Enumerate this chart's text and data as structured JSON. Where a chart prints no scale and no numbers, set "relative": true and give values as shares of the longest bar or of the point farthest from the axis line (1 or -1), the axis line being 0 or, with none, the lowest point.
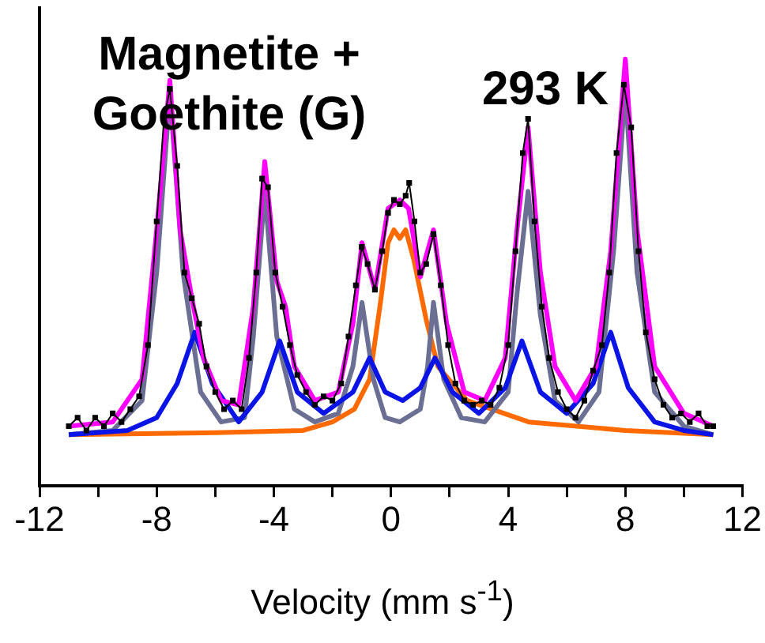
{
  "chart_data": {
    "type": "line",
    "relative": true,
    "xlabel": "Velocity (mm s$^{-1}$)",
    "annotations": [
      "Magnetite + Goethite (G)",
      "293 K"
    ],
    "xlim": [
      -12,
      12
    ],
    "xticks": [
      -12,
      {
        "value": -10,
        "label": null
      },
      -8,
      {
        "value": -6,
        "label": null
      },
      -4,
      {
        "value": -2,
        "label": null
      },
      0,
      {
        "value": 2,
        "label": null
      },
      4,
      {
        "value": 6,
        "label": null
      },
      8,
      {
        "value": 10,
        "label": null
      },
      12
    ],
    "grid": false,
    "legend": false,
    "series": [
      {
        "type": "line",
        "color": "#ff6a00",
        "marker": "none",
        "x": [
          -11,
          -6,
          -3,
          -2,
          -1.25,
          -0.73,
          -0.36,
          -0.1,
          0.1,
          0.3,
          0.5,
          0.78,
          1.2,
          1.6,
          2.6,
          4.7,
          8,
          11
        ],
        "values": [
          0.12,
          0.125,
          0.13,
          0.15,
          0.18,
          0.25,
          0.43,
          0.57,
          0.6,
          0.58,
          0.6,
          0.53,
          0.39,
          0.28,
          0.2,
          0.15,
          0.13,
          0.12
        ]
      },
      {
        "type": "line",
        "color": "#6b6f94",
        "marker": "none",
        "x": [
          -11,
          -9.5,
          -8.5,
          -8,
          -7.55,
          -7.1,
          -6.5,
          -5.8,
          -5,
          -4.7,
          -4.31,
          -3.9,
          -3.3,
          -2.6,
          -1.8,
          -1.3,
          -0.99,
          -0.6,
          -0.2,
          0.3,
          1,
          1.25,
          1.45,
          1.8,
          2.4,
          3.2,
          4,
          4.3,
          4.68,
          5.1,
          5.6,
          6.4,
          7.1,
          7.6,
          8,
          8.4,
          9,
          10,
          11
        ],
        "values": [
          0.12,
          0.13,
          0.2,
          0.5,
          0.92,
          0.5,
          0.22,
          0.15,
          0.16,
          0.35,
          0.69,
          0.35,
          0.18,
          0.15,
          0.17,
          0.28,
          0.43,
          0.25,
          0.16,
          0.15,
          0.18,
          0.28,
          0.43,
          0.25,
          0.16,
          0.15,
          0.22,
          0.45,
          0.69,
          0.4,
          0.2,
          0.15,
          0.22,
          0.55,
          0.93,
          0.5,
          0.22,
          0.14,
          0.12
        ]
      },
      {
        "type": "line",
        "color": "#0a14e6",
        "marker": "none",
        "x": [
          -11,
          -9,
          -8,
          -7.3,
          -6.7,
          -6.1,
          -5.2,
          -4.4,
          -3.8,
          -3.2,
          -2.3,
          -1.3,
          -0.73,
          -0.2,
          0.4,
          1,
          1.5,
          2.1,
          3,
          3.9,
          4.47,
          5.1,
          6,
          6.9,
          7.5,
          8.1,
          9,
          10,
          11
        ],
        "values": [
          0.12,
          0.13,
          0.16,
          0.24,
          0.36,
          0.24,
          0.15,
          0.22,
          0.34,
          0.22,
          0.17,
          0.22,
          0.3,
          0.22,
          0.2,
          0.23,
          0.3,
          0.22,
          0.17,
          0.23,
          0.34,
          0.22,
          0.17,
          0.24,
          0.36,
          0.23,
          0.15,
          0.13,
          0.12
        ]
      },
      {
        "type": "line",
        "color": "#ff00ff",
        "marker": "none",
        "x": [
          -11,
          -9.5,
          -8.5,
          -8,
          -7.55,
          -7.2,
          -6.8,
          -6.4,
          -5.8,
          -5.2,
          -4.7,
          -4.31,
          -3.9,
          -3.6,
          -3.3,
          -2.6,
          -1.8,
          -1.3,
          -0.99,
          -0.55,
          -0.1,
          0.3,
          0.6,
          1.0,
          1.45,
          1.9,
          2.5,
          3.2,
          3.9,
          4.3,
          4.68,
          5.1,
          5.6,
          6.3,
          7,
          7.5,
          8,
          8.4,
          9,
          10,
          11
        ],
        "values": [
          0.14,
          0.15,
          0.25,
          0.6,
          0.95,
          0.6,
          0.44,
          0.3,
          0.2,
          0.19,
          0.42,
          0.76,
          0.48,
          0.42,
          0.28,
          0.2,
          0.22,
          0.38,
          0.57,
          0.46,
          0.65,
          0.67,
          0.65,
          0.49,
          0.6,
          0.38,
          0.22,
          0.2,
          0.3,
          0.6,
          0.84,
          0.5,
          0.28,
          0.2,
          0.28,
          0.55,
          1,
          0.6,
          0.28,
          0.17,
          0.14
        ]
      },
      {
        "type": "line",
        "color": "#000000",
        "marker": "square",
        "x": [
          -11,
          -10.7,
          -10.4,
          -10.1,
          -9.8,
          -9.5,
          -9.2,
          -8.9,
          -8.6,
          -8.3,
          -8,
          -7.75,
          -7.55,
          -7.3,
          -7.05,
          -6.8,
          -6.55,
          -6.3,
          -6,
          -5.7,
          -5.4,
          -5.1,
          -4.85,
          -4.6,
          -4.4,
          -4.2,
          -3.95,
          -3.7,
          -3.45,
          -3.2,
          -2.9,
          -2.6,
          -2.3,
          -2,
          -1.7,
          -1.45,
          -1.2,
          -1,
          -0.8,
          -0.55,
          -0.3,
          -0.1,
          0.1,
          0.3,
          0.5,
          0.62,
          0.8,
          1,
          1.2,
          1.45,
          1.7,
          1.95,
          2.2,
          2.5,
          2.8,
          3.1,
          3.4,
          3.7,
          4,
          4.25,
          4.5,
          4.68,
          4.9,
          5.15,
          5.4,
          5.7,
          6,
          6.3,
          6.6,
          6.9,
          7.2,
          7.45,
          7.7,
          7.95,
          8.2,
          8.45,
          8.7,
          9,
          9.3,
          9.6,
          9.9,
          10.2,
          10.5,
          10.8,
          11
        ],
        "values": [
          0.14,
          0.16,
          0.13,
          0.16,
          0.14,
          0.17,
          0.15,
          0.18,
          0.21,
          0.33,
          0.62,
          0.86,
          0.93,
          0.75,
          0.5,
          0.44,
          0.38,
          0.28,
          0.22,
          0.18,
          0.2,
          0.18,
          0.3,
          0.5,
          0.72,
          0.7,
          0.5,
          0.42,
          0.33,
          0.26,
          0.22,
          0.19,
          0.21,
          0.2,
          0.24,
          0.35,
          0.47,
          0.56,
          0.52,
          0.46,
          0.55,
          0.64,
          0.67,
          0.66,
          0.68,
          0.71,
          0.62,
          0.5,
          0.52,
          0.59,
          0.47,
          0.33,
          0.24,
          0.2,
          0.19,
          0.2,
          0.19,
          0.23,
          0.33,
          0.55,
          0.78,
          0.86,
          0.62,
          0.42,
          0.3,
          0.22,
          0.18,
          0.16,
          0.2,
          0.27,
          0.33,
          0.5,
          0.78,
          0.94,
          0.84,
          0.55,
          0.36,
          0.25,
          0.19,
          0.16,
          0.17,
          0.15,
          0.17,
          0.14,
          0.14
        ]
      }
    ]
  }
}
